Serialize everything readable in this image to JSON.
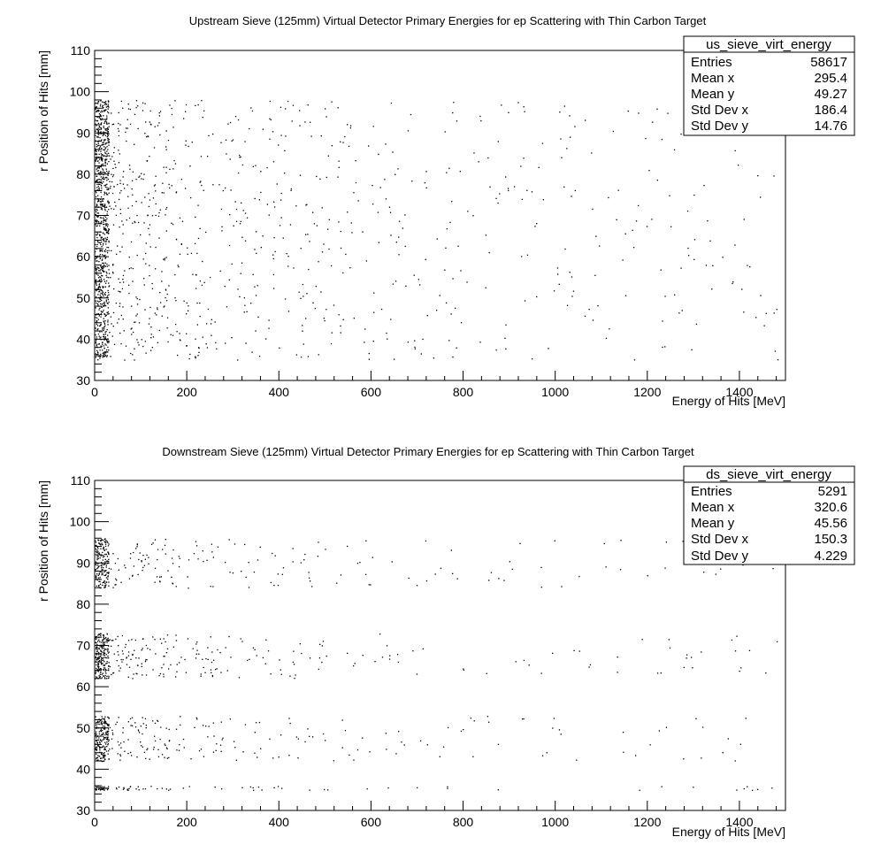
{
  "chart_data": [
    {
      "type": "scatter",
      "title": "Upstream Sieve (125mm) Virtual Detector Primary Energies for ep Scattering with Thin Carbon Target",
      "xlabel": "Energy of Hits [MeV]",
      "ylabel": "r Position of Hits [mm]",
      "xlim": [
        0,
        1500
      ],
      "ylim": [
        30,
        110
      ],
      "xticks": [
        "0",
        "200",
        "400",
        "600",
        "800",
        "1000",
        "1200",
        "1400"
      ],
      "yticks": [
        "30",
        "40",
        "50",
        "60",
        "70",
        "80",
        "90",
        "100",
        "110"
      ],
      "r_bands": [
        [
          35,
          98
        ]
      ],
      "stats": {
        "name": "us_sieve_virt_energy",
        "rows": [
          {
            "label": "Entries",
            "value": "58617"
          },
          {
            "label": "Mean x",
            "value": "295.4"
          },
          {
            "label": "Mean y",
            "value": "49.27"
          },
          {
            "label": "Std Dev x",
            "value": "186.4"
          },
          {
            "label": "Std Dev y",
            "value": "14.76"
          }
        ]
      }
    },
    {
      "type": "scatter",
      "title": "Downstream Sieve (125mm) Virtual Detector Primary Energies for ep Scattering with Thin Carbon Target",
      "xlabel": "Energy of Hits [MeV]",
      "ylabel": "r Position of Hits [mm]",
      "xlim": [
        0,
        1500
      ],
      "ylim": [
        30,
        110
      ],
      "xticks": [
        "0",
        "200",
        "400",
        "600",
        "800",
        "1000",
        "1200",
        "1400"
      ],
      "yticks": [
        "30",
        "40",
        "50",
        "60",
        "70",
        "80",
        "90",
        "100",
        "110"
      ],
      "r_bands": [
        [
          84,
          96
        ],
        [
          62,
          73
        ],
        [
          42,
          53
        ],
        [
          35,
          36
        ]
      ],
      "stats": {
        "name": "ds_sieve_virt_energy",
        "rows": [
          {
            "label": "Entries",
            "value": "5291"
          },
          {
            "label": "Mean x",
            "value": "320.6"
          },
          {
            "label": "Mean y",
            "value": "45.56"
          },
          {
            "label": "Std Dev x",
            "value": "150.3"
          },
          {
            "label": "Std Dev y",
            "value": "4.229"
          }
        ]
      }
    }
  ]
}
